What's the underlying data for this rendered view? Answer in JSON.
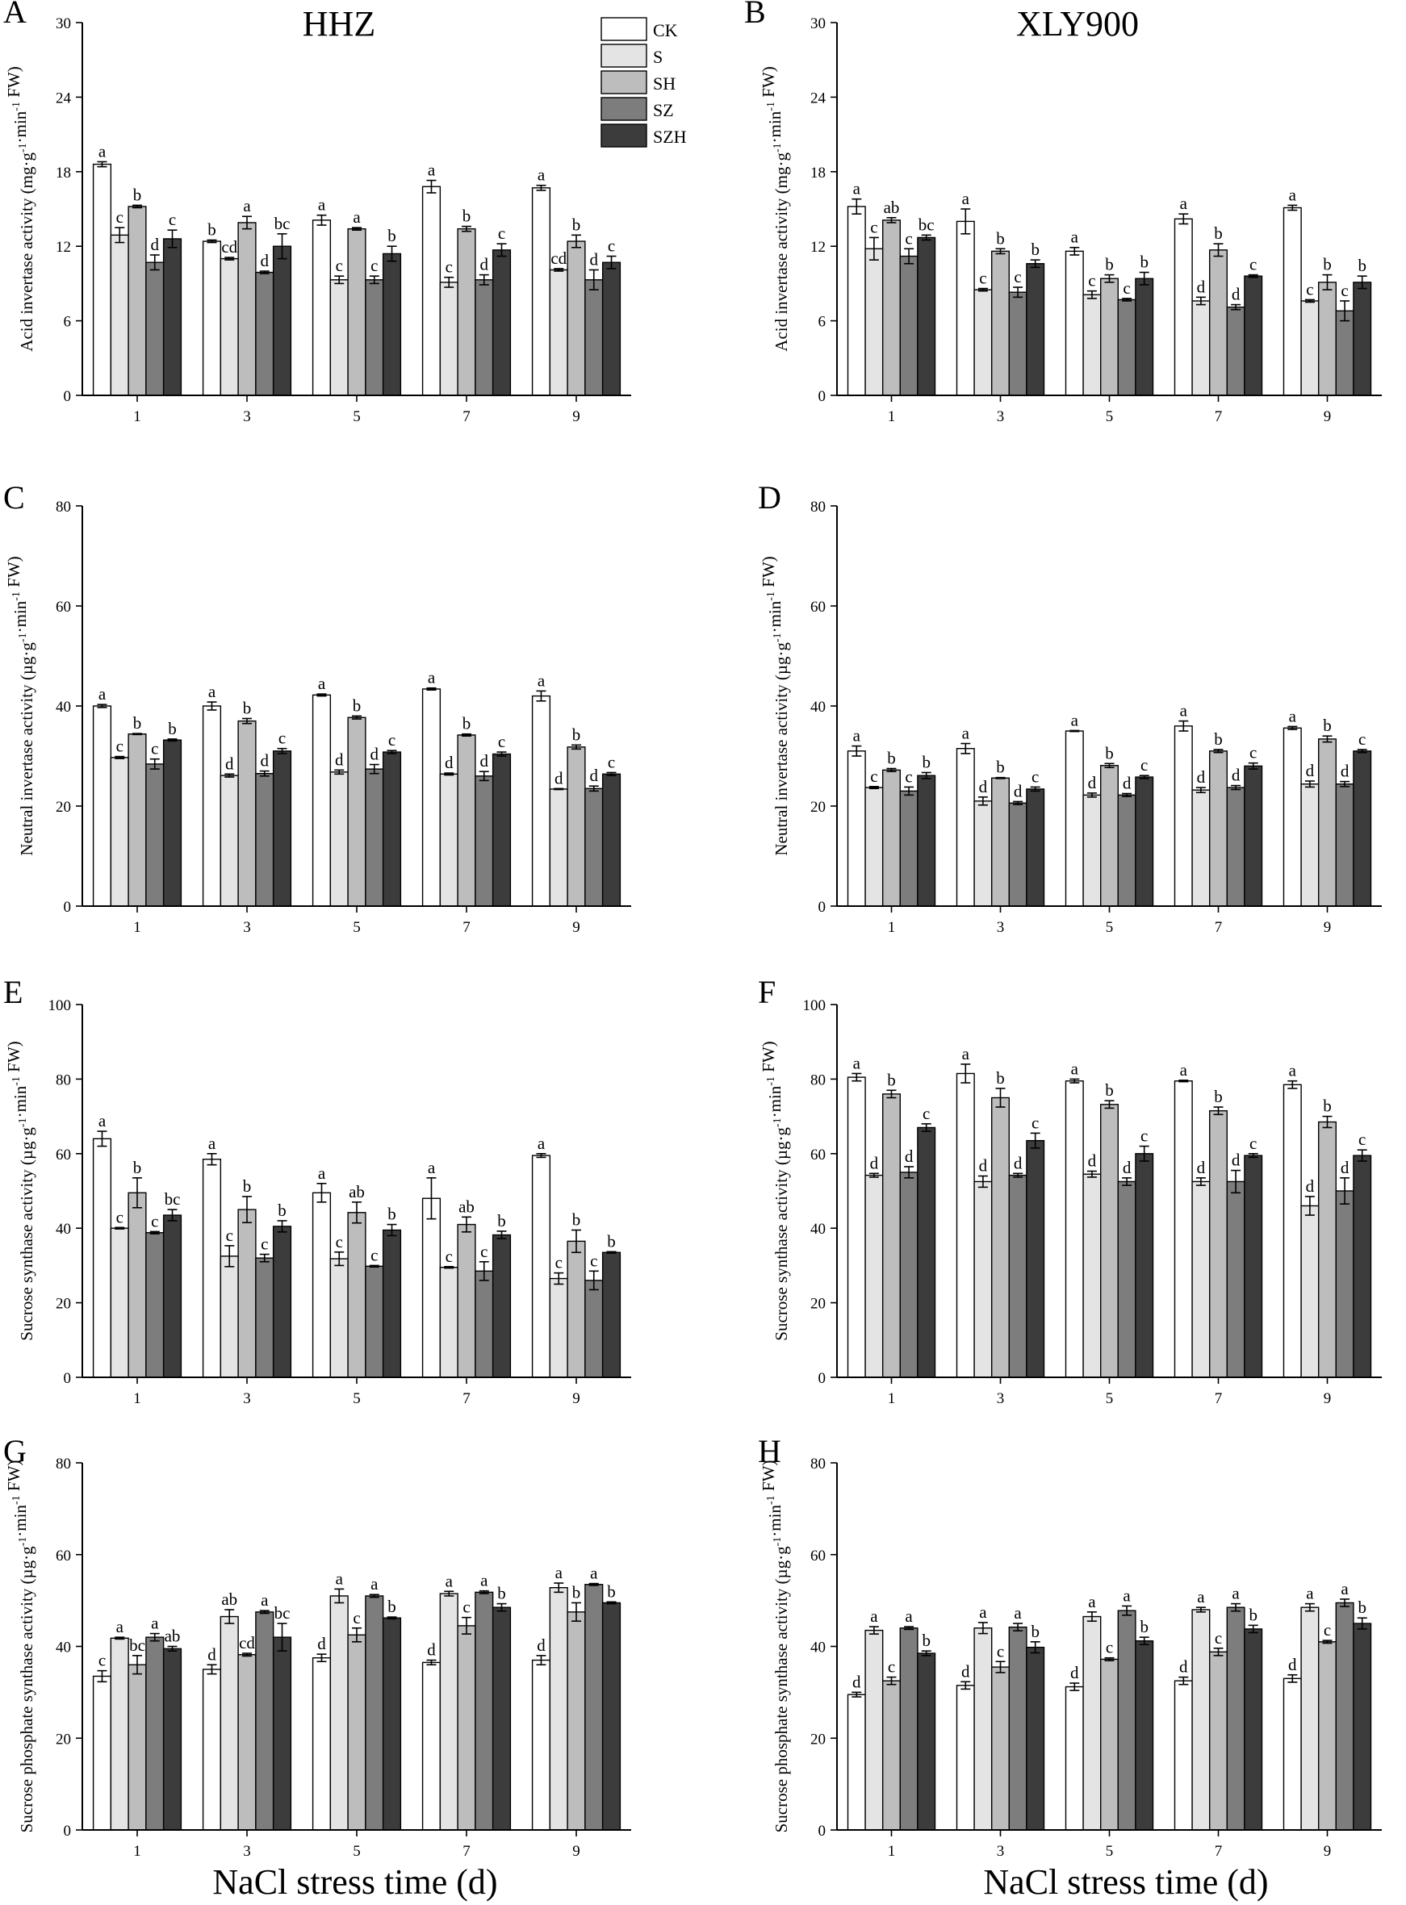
{
  "figure": {
    "xlabel": "NaCl stress time (d)",
    "column_titles": [
      "HHZ",
      "XLY900"
    ],
    "legend": [
      {
        "label": "CK",
        "color": "#ffffff"
      },
      {
        "label": "S",
        "color": "#e4e4e4"
      },
      {
        "label": "SH",
        "color": "#bdbdbd"
      },
      {
        "label": "SZ",
        "color": "#7d7d7d"
      },
      {
        "label": "SZH",
        "color": "#3c3c3c"
      }
    ]
  },
  "chart_data": [
    {
      "type": "bar",
      "panel": "A",
      "title": "HHZ",
      "ylabel": "Acid invertase activity (mg·g-1·min-1 FW)",
      "ylim": [
        0,
        30
      ],
      "yticks": [
        0,
        6,
        12,
        18,
        24,
        30
      ],
      "categories": [
        "1",
        "3",
        "5",
        "7",
        "9"
      ],
      "series": [
        {
          "name": "CK",
          "values": [
            18.6,
            12.4,
            14.1,
            16.8,
            16.7
          ],
          "errors": [
            0.2,
            0.1,
            0.4,
            0.5,
            0.2
          ],
          "letters": [
            "a",
            "b",
            "a",
            "a",
            "a"
          ]
        },
        {
          "name": "S",
          "values": [
            12.9,
            11.0,
            9.3,
            9.1,
            10.1
          ],
          "errors": [
            0.6,
            0.1,
            0.3,
            0.4,
            0.1
          ],
          "letters": [
            "c",
            "cd",
            "c",
            "c",
            "cd"
          ]
        },
        {
          "name": "SH",
          "values": [
            15.2,
            13.9,
            13.4,
            13.4,
            12.4
          ],
          "errors": [
            0.1,
            0.5,
            0.1,
            0.2,
            0.5
          ],
          "letters": [
            "b",
            "a",
            "a",
            "b",
            "b"
          ]
        },
        {
          "name": "SZ",
          "values": [
            10.7,
            9.9,
            9.3,
            9.3,
            9.3
          ],
          "errors": [
            0.6,
            0.1,
            0.3,
            0.4,
            0.8
          ],
          "letters": [
            "d",
            "d",
            "c",
            "d",
            "d"
          ]
        },
        {
          "name": "SZH",
          "values": [
            12.6,
            12.0,
            11.4,
            11.7,
            10.7
          ],
          "errors": [
            0.7,
            1.0,
            0.6,
            0.5,
            0.5
          ],
          "letters": [
            "c",
            "bc",
            "b",
            "c",
            "c"
          ]
        }
      ]
    },
    {
      "type": "bar",
      "panel": "B",
      "title": "XLY900",
      "ylabel": "Acid invertase activity (mg·g-1·min-1 FW)",
      "ylim": [
        0,
        30
      ],
      "yticks": [
        0,
        6,
        12,
        18,
        24,
        30
      ],
      "categories": [
        "1",
        "3",
        "5",
        "7",
        "9"
      ],
      "series": [
        {
          "name": "CK",
          "values": [
            15.2,
            14.0,
            11.6,
            14.2,
            15.1
          ],
          "errors": [
            0.6,
            1.0,
            0.3,
            0.4,
            0.2
          ],
          "letters": [
            "a",
            "a",
            "a",
            "a",
            "a"
          ]
        },
        {
          "name": "S",
          "values": [
            11.8,
            8.5,
            8.1,
            7.6,
            7.6
          ],
          "errors": [
            0.9,
            0.1,
            0.3,
            0.3,
            0.1
          ],
          "letters": [
            "c",
            "c",
            "c",
            "d",
            "c"
          ]
        },
        {
          "name": "SH",
          "values": [
            14.1,
            11.6,
            9.4,
            11.7,
            9.1
          ],
          "errors": [
            0.2,
            0.2,
            0.3,
            0.5,
            0.6
          ],
          "letters": [
            "ab",
            "b",
            "b",
            "b",
            "b"
          ]
        },
        {
          "name": "SZ",
          "values": [
            11.2,
            8.3,
            7.7,
            7.1,
            6.8
          ],
          "errors": [
            0.6,
            0.4,
            0.1,
            0.2,
            0.8
          ],
          "letters": [
            "c",
            "c",
            "c",
            "d",
            "c"
          ]
        },
        {
          "name": "SZH",
          "values": [
            12.7,
            10.6,
            9.4,
            9.6,
            9.1
          ],
          "errors": [
            0.2,
            0.3,
            0.5,
            0.1,
            0.5
          ],
          "letters": [
            "bc",
            "b",
            "b",
            "c",
            "b"
          ]
        }
      ]
    },
    {
      "type": "bar",
      "panel": "C",
      "title": "",
      "ylabel": "Neutral invertase activity (µg·g-1·min-1 FW)",
      "ylim": [
        0,
        80
      ],
      "yticks": [
        0,
        20,
        40,
        60,
        80
      ],
      "categories": [
        "1",
        "3",
        "5",
        "7",
        "9"
      ],
      "series": [
        {
          "name": "CK",
          "values": [
            40.0,
            40.0,
            42.2,
            43.4,
            42.0
          ],
          "errors": [
            0.3,
            0.8,
            0.2,
            0.2,
            1.0
          ],
          "letters": [
            "a",
            "a",
            "a",
            "a",
            "a"
          ]
        },
        {
          "name": "S",
          "values": [
            29.7,
            26.1,
            26.8,
            26.4,
            23.4
          ],
          "errors": [
            0.2,
            0.3,
            0.4,
            0.2,
            0.1
          ],
          "letters": [
            "c",
            "d",
            "d",
            "d",
            "d"
          ]
        },
        {
          "name": "SH",
          "values": [
            34.4,
            37.0,
            37.7,
            34.2,
            31.8
          ],
          "errors": [
            0.1,
            0.5,
            0.3,
            0.2,
            0.4
          ],
          "letters": [
            "b",
            "b",
            "b",
            "b",
            "b"
          ]
        },
        {
          "name": "SZ",
          "values": [
            28.4,
            26.5,
            27.4,
            26.0,
            23.5
          ],
          "errors": [
            1.0,
            0.5,
            0.9,
            0.9,
            0.5
          ],
          "letters": [
            "c",
            "d",
            "d",
            "d",
            "d"
          ]
        },
        {
          "name": "SZH",
          "values": [
            33.2,
            31.0,
            30.8,
            30.4,
            26.4
          ],
          "errors": [
            0.2,
            0.5,
            0.3,
            0.4,
            0.3
          ],
          "letters": [
            "b",
            "c",
            "c",
            "c",
            "c"
          ]
        }
      ]
    },
    {
      "type": "bar",
      "panel": "D",
      "title": "",
      "ylabel": "Neutral invertase activity (µg·g-1·min-1 FW)",
      "ylim": [
        0,
        80
      ],
      "yticks": [
        0,
        20,
        40,
        60,
        80
      ],
      "categories": [
        "1",
        "3",
        "5",
        "7",
        "9"
      ],
      "series": [
        {
          "name": "CK",
          "values": [
            31.0,
            31.5,
            35.0,
            36.0,
            35.6
          ],
          "errors": [
            1.0,
            1.0,
            0.1,
            1.0,
            0.3
          ],
          "letters": [
            "a",
            "a",
            "a",
            "a",
            "a"
          ]
        },
        {
          "name": "S",
          "values": [
            23.7,
            21.0,
            22.2,
            23.2,
            24.4
          ],
          "errors": [
            0.2,
            0.8,
            0.4,
            0.5,
            0.6
          ],
          "letters": [
            "c",
            "d",
            "d",
            "d",
            "d"
          ]
        },
        {
          "name": "SH",
          "values": [
            27.2,
            25.6,
            28.1,
            31.0,
            33.4
          ],
          "errors": [
            0.3,
            0.1,
            0.4,
            0.3,
            0.6
          ],
          "letters": [
            "b",
            "b",
            "b",
            "b",
            "b"
          ]
        },
        {
          "name": "SZ",
          "values": [
            23.0,
            20.6,
            22.2,
            23.7,
            24.4
          ],
          "errors": [
            0.8,
            0.3,
            0.3,
            0.4,
            0.5
          ],
          "letters": [
            "c",
            "d",
            "d",
            "d",
            "d"
          ]
        },
        {
          "name": "SZH",
          "values": [
            26.1,
            23.4,
            25.8,
            28.0,
            31.0
          ],
          "errors": [
            0.6,
            0.4,
            0.3,
            0.6,
            0.3
          ],
          "letters": [
            "b",
            "c",
            "c",
            "c",
            "c"
          ]
        }
      ]
    },
    {
      "type": "bar",
      "panel": "E",
      "title": "",
      "ylabel": "Sucrose synthase activity (µg·g-1·min-1 FW)",
      "ylim": [
        0,
        100
      ],
      "yticks": [
        0,
        20,
        40,
        60,
        80,
        100
      ],
      "categories": [
        "1",
        "3",
        "5",
        "7",
        "9"
      ],
      "series": [
        {
          "name": "CK",
          "values": [
            64.0,
            58.5,
            49.5,
            48.0,
            59.5
          ],
          "errors": [
            2.0,
            1.5,
            2.5,
            5.5,
            0.5
          ],
          "letters": [
            "a",
            "a",
            "a",
            "a",
            "a"
          ]
        },
        {
          "name": "S",
          "values": [
            40.0,
            32.5,
            31.8,
            29.5,
            26.5
          ],
          "errors": [
            0.2,
            2.8,
            1.8,
            0.2,
            1.5
          ],
          "letters": [
            "c",
            "c",
            "c",
            "c",
            "c"
          ]
        },
        {
          "name": "SH",
          "values": [
            49.5,
            45.0,
            44.2,
            41.0,
            36.5
          ],
          "errors": [
            4.0,
            3.5,
            2.8,
            2.0,
            3.0
          ],
          "letters": [
            "b",
            "b",
            "ab",
            "ab",
            "b"
          ]
        },
        {
          "name": "SZ",
          "values": [
            38.8,
            32.0,
            29.8,
            28.5,
            26.0
          ],
          "errors": [
            0.3,
            1.0,
            0.2,
            2.5,
            2.5
          ],
          "letters": [
            "c",
            "c",
            "c",
            "c",
            "c"
          ]
        },
        {
          "name": "SZH",
          "values": [
            43.5,
            40.5,
            39.5,
            38.2,
            33.5
          ],
          "errors": [
            1.5,
            1.5,
            1.5,
            1.0,
            0.2
          ],
          "letters": [
            "bc",
            "b",
            "b",
            "b",
            "b"
          ]
        }
      ]
    },
    {
      "type": "bar",
      "panel": "F",
      "title": "",
      "ylabel": "Sucrose synthase activity (µg·g-1·min-1 FW)",
      "ylim": [
        0,
        100
      ],
      "yticks": [
        0,
        20,
        40,
        60,
        80,
        100
      ],
      "categories": [
        "1",
        "3",
        "5",
        "7",
        "9"
      ],
      "series": [
        {
          "name": "CK",
          "values": [
            80.5,
            81.5,
            79.5,
            79.5,
            78.5
          ],
          "errors": [
            1.0,
            2.5,
            0.5,
            0.2,
            1.0
          ],
          "letters": [
            "a",
            "a",
            "a",
            "a",
            "a"
          ]
        },
        {
          "name": "S",
          "values": [
            54.2,
            52.5,
            54.5,
            52.5,
            46.0
          ],
          "errors": [
            0.5,
            1.5,
            0.8,
            1.0,
            2.5
          ],
          "letters": [
            "d",
            "d",
            "d",
            "d",
            "d"
          ]
        },
        {
          "name": "SH",
          "values": [
            76.0,
            75.0,
            73.2,
            71.5,
            68.5
          ],
          "errors": [
            1.0,
            2.5,
            1.0,
            1.0,
            1.5
          ],
          "letters": [
            "b",
            "b",
            "b",
            "b",
            "b"
          ]
        },
        {
          "name": "SZ",
          "values": [
            55.0,
            54.2,
            52.5,
            52.5,
            50.0
          ],
          "errors": [
            1.5,
            0.5,
            1.0,
            3.0,
            3.5
          ],
          "letters": [
            "d",
            "d",
            "d",
            "d",
            "d"
          ]
        },
        {
          "name": "SZH",
          "values": [
            67.0,
            63.5,
            60.0,
            59.5,
            59.5
          ],
          "errors": [
            1.0,
            2.0,
            2.0,
            0.5,
            1.5
          ],
          "letters": [
            "c",
            "c",
            "c",
            "c",
            "c"
          ]
        }
      ]
    },
    {
      "type": "bar",
      "panel": "G",
      "title": "",
      "ylabel": "Sucrose phosphate synthase activity (µg·g-1·min-1 FW)",
      "ylim": [
        0,
        80
      ],
      "yticks": [
        0,
        20,
        40,
        60,
        80
      ],
      "categories": [
        "1",
        "3",
        "5",
        "7",
        "9"
      ],
      "series": [
        {
          "name": "CK",
          "values": [
            33.5,
            35.0,
            37.5,
            36.5,
            37.0
          ],
          "errors": [
            1.2,
            1.0,
            0.8,
            0.5,
            1.0
          ],
          "letters": [
            "c",
            "d",
            "d",
            "d",
            "d"
          ]
        },
        {
          "name": "S",
          "values": [
            41.8,
            46.5,
            51.0,
            51.5,
            52.8
          ],
          "errors": [
            0.2,
            1.5,
            1.5,
            0.5,
            1.0
          ],
          "letters": [
            "a",
            "ab",
            "a",
            "a",
            "a"
          ]
        },
        {
          "name": "SH",
          "values": [
            36.0,
            38.2,
            42.5,
            44.5,
            47.5
          ],
          "errors": [
            2.0,
            0.3,
            1.5,
            1.8,
            2.0
          ],
          "letters": [
            "bc",
            "cd",
            "c",
            "c",
            "b"
          ]
        },
        {
          "name": "SZ",
          "values": [
            42.0,
            47.5,
            51.0,
            51.8,
            53.5
          ],
          "errors": [
            0.8,
            0.3,
            0.3,
            0.3,
            0.2
          ],
          "letters": [
            "a",
            "a",
            "a",
            "a",
            "a"
          ]
        },
        {
          "name": "SZH",
          "values": [
            39.5,
            42.0,
            46.2,
            48.5,
            49.5
          ],
          "errors": [
            0.5,
            3.0,
            0.2,
            0.8,
            0.2
          ],
          "letters": [
            "ab",
            "bc",
            "b",
            "b",
            "b"
          ]
        }
      ]
    },
    {
      "type": "bar",
      "panel": "H",
      "title": "",
      "ylabel": "Sucrose phosphate synthase activity (µg·g-1·min-1 FW)",
      "ylim": [
        0,
        80
      ],
      "yticks": [
        0,
        20,
        40,
        60,
        80
      ],
      "categories": [
        "1",
        "3",
        "5",
        "7",
        "9"
      ],
      "series": [
        {
          "name": "CK",
          "values": [
            29.5,
            31.5,
            31.2,
            32.5,
            33.0
          ],
          "errors": [
            0.5,
            0.8,
            0.8,
            0.8,
            0.8
          ],
          "letters": [
            "d",
            "d",
            "d",
            "d",
            "d"
          ]
        },
        {
          "name": "S",
          "values": [
            43.5,
            44.0,
            46.5,
            48.0,
            48.5
          ],
          "errors": [
            0.8,
            1.2,
            1.0,
            0.5,
            0.8
          ],
          "letters": [
            "a",
            "a",
            "a",
            "a",
            "a"
          ]
        },
        {
          "name": "SH",
          "values": [
            32.5,
            35.5,
            37.2,
            38.8,
            41.0
          ],
          "errors": [
            0.8,
            1.2,
            0.3,
            0.8,
            0.3
          ],
          "letters": [
            "c",
            "c",
            "c",
            "c",
            "c"
          ]
        },
        {
          "name": "SZ",
          "values": [
            44.0,
            44.2,
            47.8,
            48.5,
            49.5
          ],
          "errors": [
            0.3,
            0.8,
            1.0,
            0.8,
            0.8
          ],
          "letters": [
            "a",
            "a",
            "a",
            "a",
            "a"
          ]
        },
        {
          "name": "SZH",
          "values": [
            38.5,
            39.8,
            41.2,
            43.8,
            45.0
          ],
          "errors": [
            0.5,
            1.2,
            0.8,
            0.8,
            1.2
          ],
          "letters": [
            "b",
            "b",
            "b",
            "b",
            "b"
          ]
        }
      ]
    }
  ]
}
